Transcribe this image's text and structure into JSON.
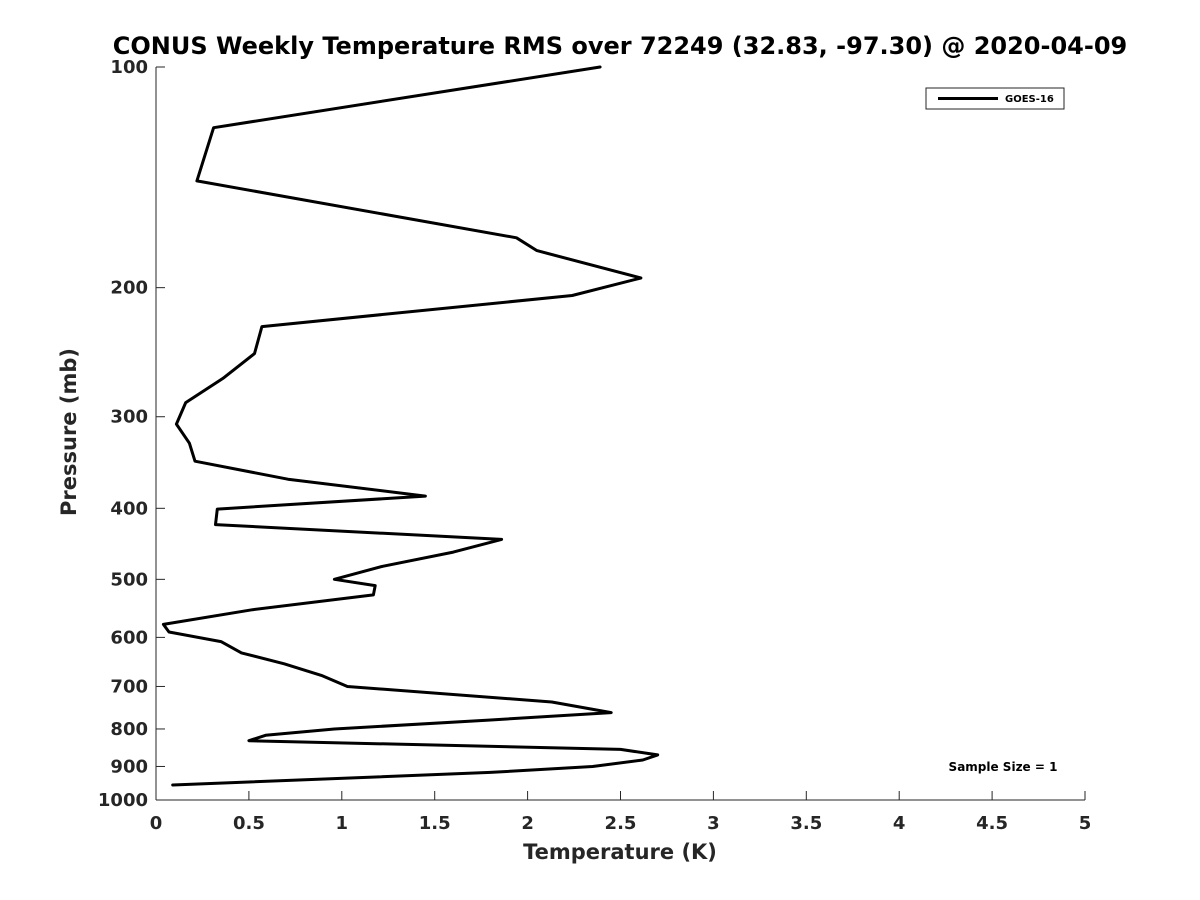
{
  "chart_data": {
    "type": "line",
    "title": "CONUS Weekly Temperature RMS over 72249 (32.83, -97.30) @ 2020-04-09",
    "xlabel": "Temperature (K)",
    "ylabel": "Pressure (mb)",
    "xlim": [
      0,
      5
    ],
    "ylim": [
      1000,
      100
    ],
    "y_scale": "log",
    "y_reversed": true,
    "x_ticks": [
      "0",
      "0.5",
      "1",
      "1.5",
      "2",
      "2.5",
      "3",
      "3.5",
      "4",
      "4.5",
      "5"
    ],
    "y_ticks": [
      "100",
      "200",
      "300",
      "400",
      "500",
      "600",
      "700",
      "800",
      "900",
      "1000"
    ],
    "grid": false,
    "legend_position": "top-right",
    "series": [
      {
        "name": "GOES-16",
        "color": "#000000",
        "x": [
          2.39,
          0.31,
          0.22,
          1.94,
          2.05,
          2.61,
          2.24,
          0.57,
          0.53,
          0.36,
          0.16,
          0.11,
          0.18,
          0.21,
          0.71,
          1.45,
          0.33,
          0.32,
          1.86,
          1.6,
          1.22,
          0.96,
          1.18,
          1.17,
          0.52,
          0.04,
          0.07,
          0.35,
          0.46,
          0.69,
          0.89,
          1.03,
          2.13,
          2.45,
          1.79,
          0.96,
          0.59,
          0.5,
          2.5,
          2.7,
          2.62,
          2.35,
          1.8,
          0.09
        ],
        "y": [
          100,
          121,
          143,
          171,
          178,
          194,
          205,
          226,
          246,
          266,
          287,
          307,
          326,
          345,
          365,
          385,
          401,
          421,
          441,
          459,
          480,
          500,
          510,
          525,
          550,
          576,
          590,
          608,
          630,
          652,
          676,
          700,
          735,
          760,
          778,
          800,
          816,
          830,
          853,
          868,
          882,
          900,
          917,
          954
        ]
      }
    ],
    "annotations": [
      "Sample Size = 1"
    ]
  }
}
